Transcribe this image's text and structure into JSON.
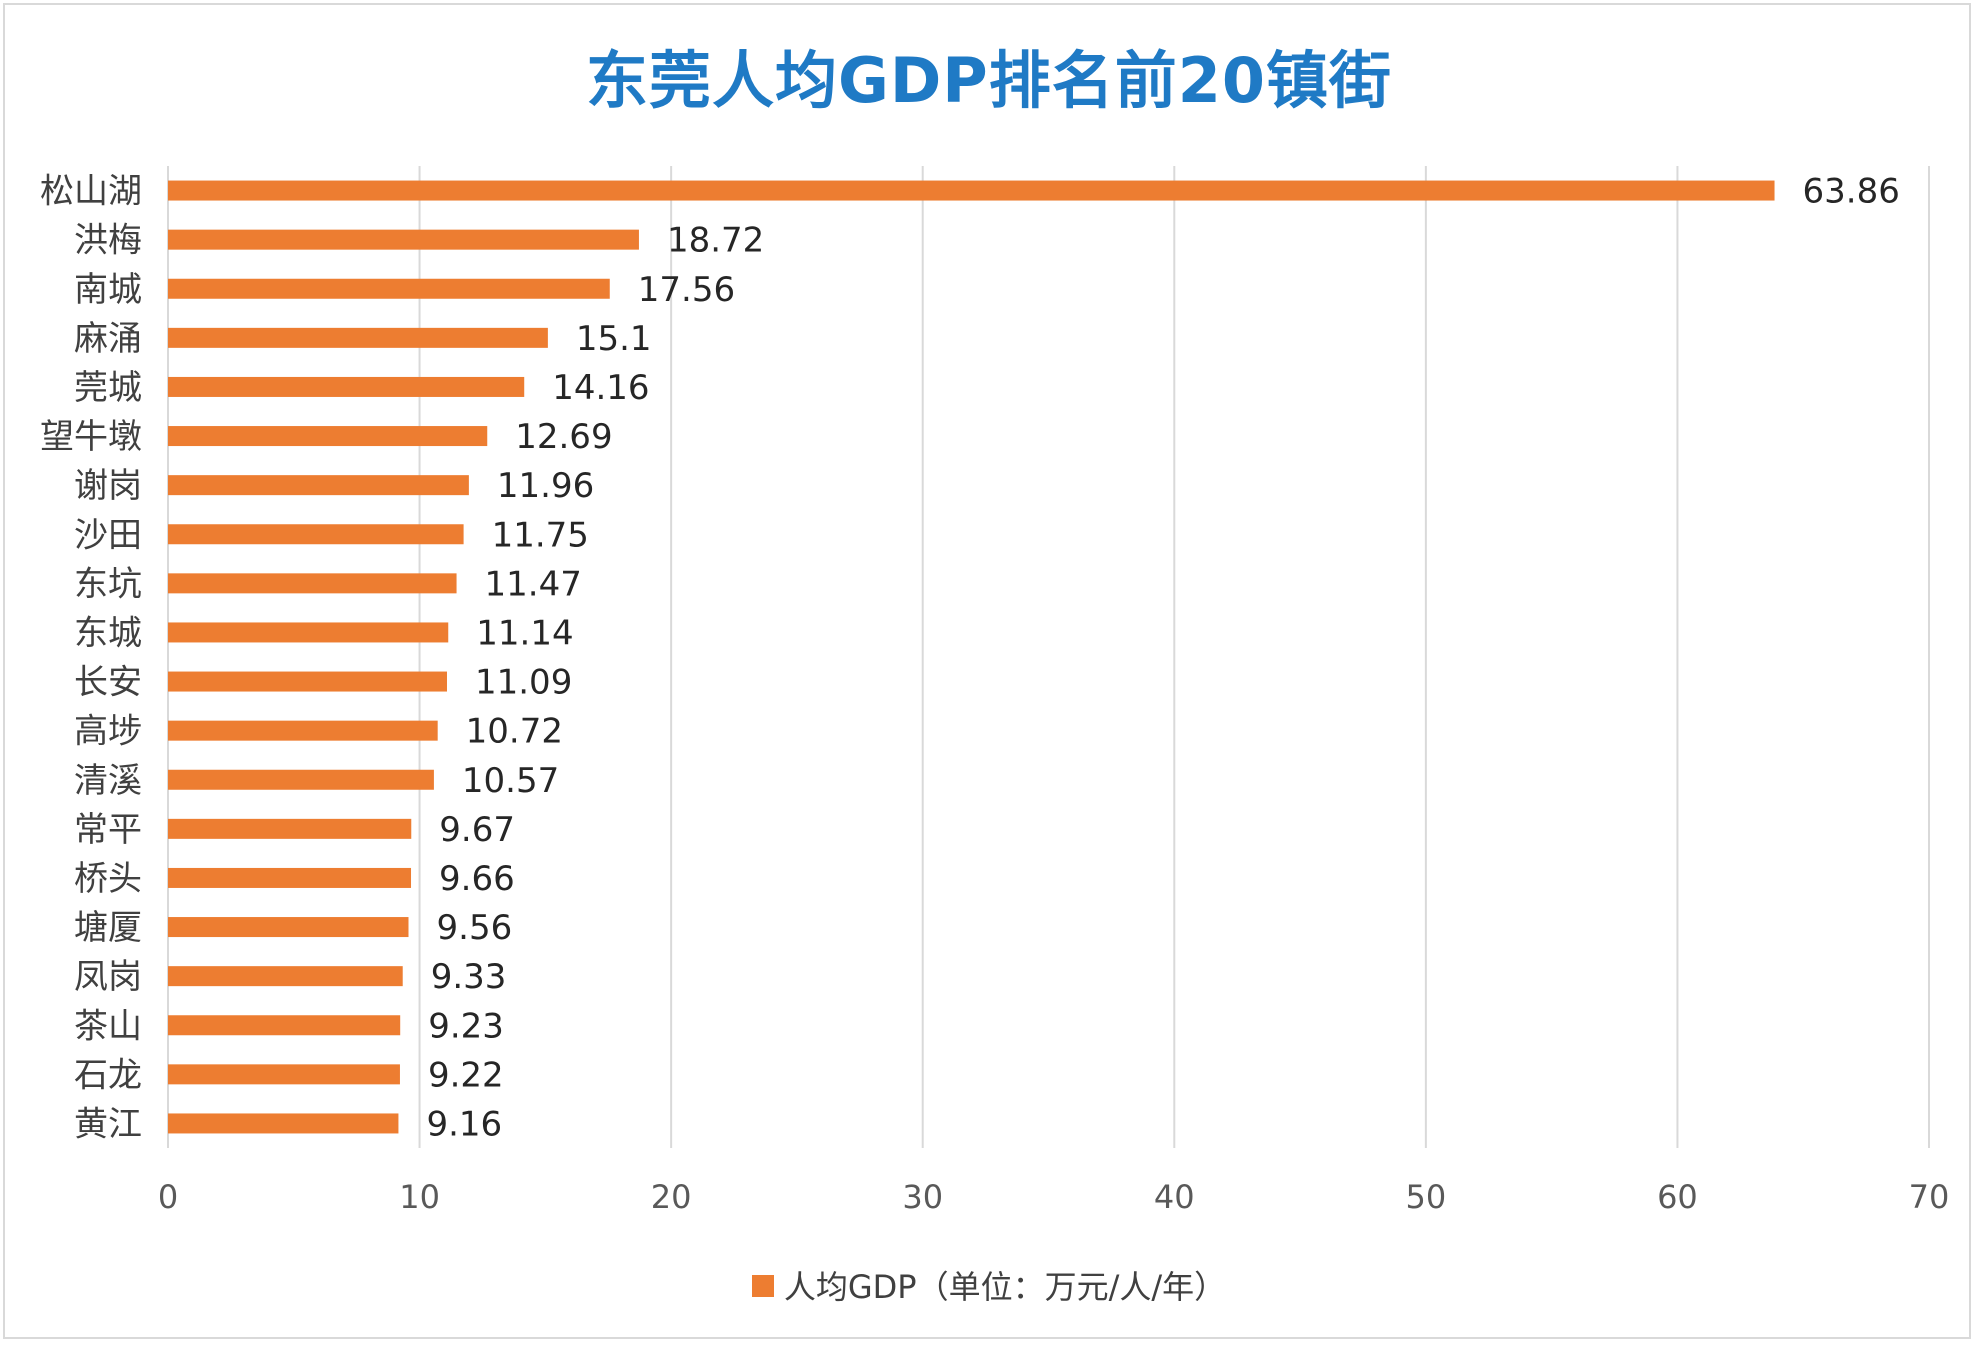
{
  "chart_data": {
    "type": "bar",
    "orientation": "horizontal",
    "title": "东莞人均GDP排名前20镇街",
    "categories": [
      "松山湖",
      "洪梅",
      "南城",
      "麻涌",
      "莞城",
      "望牛墩",
      "谢岗",
      "沙田",
      "东坑",
      "东城",
      "长安",
      "高埗",
      "清溪",
      "常平",
      "桥头",
      "塘厦",
      "凤岗",
      "茶山",
      "石龙",
      "黄江"
    ],
    "series": [
      {
        "name": "人均GDP（单位：万元/人/年）",
        "values": [
          63.86,
          18.72,
          17.56,
          15.1,
          14.16,
          12.69,
          11.96,
          11.75,
          11.47,
          11.14,
          11.09,
          10.72,
          10.57,
          9.67,
          9.66,
          9.56,
          9.33,
          9.23,
          9.22,
          9.16
        ],
        "labels": [
          "63.86",
          "18.72",
          "17.56",
          "15.1",
          "14.16",
          "12.69",
          "11.96",
          "11.75",
          "11.47",
          "11.14",
          "11.09",
          "10.72",
          "10.57",
          "9.67",
          "9.66",
          "9.56",
          "9.33",
          "9.23",
          "9.22",
          "9.16"
        ],
        "color": "#ed7d31"
      }
    ],
    "xlim": [
      0,
      70
    ],
    "xticks": [
      "0",
      "10",
      "20",
      "30",
      "40",
      "50",
      "60",
      "70"
    ],
    "grid": "vertical",
    "legend_position": "bottom",
    "title_color": "#1f7ac5",
    "grid_color": "#d9d9d9"
  }
}
